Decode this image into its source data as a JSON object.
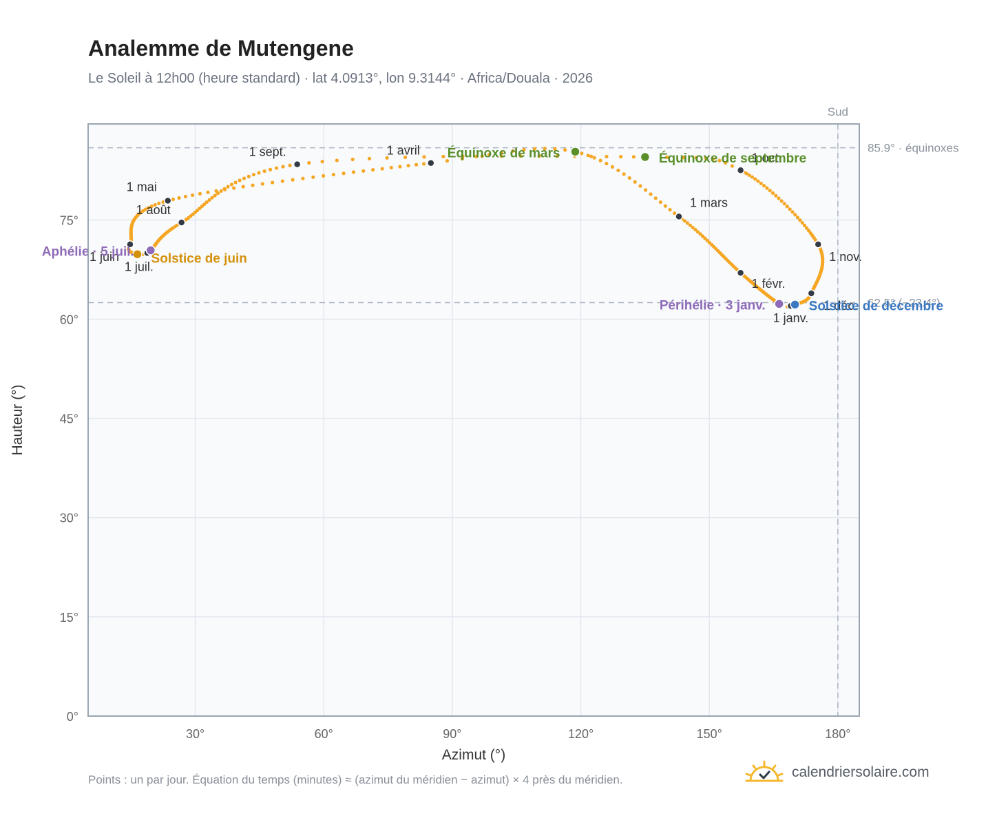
{
  "title": "Analemme de Mutengene",
  "subtitle": "Le Soleil à 12h00 (heure standard) · lat 4.0913°, lon 9.3144° · Africa/Douala · 2026",
  "footnote": "Points : un par jour. Équation du temps (minutes) ≈ (azimut du méridien − azimut) × 4 près du méridien.",
  "brand": "calendriersolaire.com",
  "colors": {
    "curve": "#f5a623",
    "month_marker": "#333a44",
    "equinox": "#5a8f2a",
    "june_solstice": "#d4900a",
    "december_solstice": "#3a78c2",
    "apsis": "#8e6bb8",
    "reference_line": "#aab4c0",
    "plot_bg": "#f8fafc",
    "grid": "#e3e8ee"
  },
  "chart_data": {
    "type": "scatter",
    "xlabel": "Azimut (°)",
    "ylabel": "Hauteur (°)",
    "xlim": [
      5,
      185
    ],
    "ylim": [
      0,
      89.5
    ],
    "x_ticks": [
      30,
      60,
      90,
      120,
      150,
      180
    ],
    "x_tick_labels": [
      "30°",
      "60°",
      "90°",
      "120°",
      "150°",
      "180°"
    ],
    "y_ticks": [
      0,
      15,
      30,
      45,
      60,
      75
    ],
    "y_tick_labels": [
      "0°",
      "15°",
      "30°",
      "45°",
      "60°",
      "75°"
    ],
    "grid": true,
    "reference_lines": [
      {
        "axis": "y",
        "value": 85.9,
        "label": "85.9° · équinoxes"
      },
      {
        "axis": "y",
        "value": 62.5,
        "label": "62.5° (−23.4°)"
      },
      {
        "axis": "x",
        "value": 180,
        "label": "Sud"
      }
    ],
    "series": [
      {
        "kind": "daily_path",
        "anchors": [
          {
            "doy": 1,
            "az": 169.0,
            "alt": 62.0
          },
          {
            "doy": 3,
            "az": 166.3,
            "alt": 62.3
          },
          {
            "doy": 32,
            "az": 157.3,
            "alt": 67.0
          },
          {
            "doy": 60,
            "az": 142.9,
            "alt": 75.5
          },
          {
            "doy": 79,
            "az": 118.7,
            "alt": 85.3
          },
          {
            "doy": 91,
            "az": 85.0,
            "alt": 83.6
          },
          {
            "doy": 121,
            "az": 23.6,
            "alt": 77.9
          },
          {
            "doy": 152,
            "az": 14.8,
            "alt": 71.3
          },
          {
            "doy": 172,
            "az": 16.5,
            "alt": 69.8
          },
          {
            "doy": 182,
            "az": 18.8,
            "alt": 70.0
          },
          {
            "doy": 186,
            "az": 19.6,
            "alt": 70.4
          },
          {
            "doy": 213,
            "az": 26.8,
            "alt": 74.6
          },
          {
            "doy": 244,
            "az": 53.8,
            "alt": 83.4
          },
          {
            "doy": 265,
            "az": 135.0,
            "alt": 84.5
          },
          {
            "doy": 274,
            "az": 157.3,
            "alt": 82.5
          },
          {
            "doy": 305,
            "az": 175.4,
            "alt": 71.3
          },
          {
            "doy": 335,
            "az": 173.8,
            "alt": 63.9
          },
          {
            "doy": 355,
            "az": 170.0,
            "alt": 62.2
          },
          {
            "doy": 365,
            "az": 169.0,
            "alt": 62.0
          }
        ]
      }
    ],
    "month_markers": [
      {
        "label": "1 janv.",
        "az": 169.0,
        "alt": 62.0
      },
      {
        "label": "1 févr.",
        "az": 157.3,
        "alt": 67.0
      },
      {
        "label": "1 mars",
        "az": 142.9,
        "alt": 75.5
      },
      {
        "label": "1 avril",
        "az": 85.0,
        "alt": 83.6
      },
      {
        "label": "1 mai",
        "az": 23.6,
        "alt": 77.9
      },
      {
        "label": "1 juin",
        "az": 14.8,
        "alt": 71.3
      },
      {
        "label": "1 juil.",
        "az": 18.8,
        "alt": 70.0
      },
      {
        "label": "1 août",
        "az": 26.8,
        "alt": 74.6
      },
      {
        "label": "1 sept.",
        "az": 53.8,
        "alt": 83.4
      },
      {
        "label": "1 oct.",
        "az": 157.3,
        "alt": 82.5
      },
      {
        "label": "1 nov.",
        "az": 175.4,
        "alt": 71.3
      },
      {
        "label": "1 déc.",
        "az": 173.8,
        "alt": 63.9
      }
    ],
    "events": [
      {
        "label": "Équinoxe de mars",
        "az": 118.7,
        "alt": 85.3,
        "color_key": "equinox"
      },
      {
        "label": "Équinoxe de septembre",
        "az": 135.0,
        "alt": 84.5,
        "color_key": "equinox"
      },
      {
        "label": "Solstice de juin",
        "az": 16.5,
        "alt": 69.8,
        "color_key": "june_solstice"
      },
      {
        "label": "Solstice de décembre",
        "az": 170.0,
        "alt": 62.2,
        "color_key": "december_solstice"
      },
      {
        "label": "Aphélie · 5 juil.",
        "az": 19.6,
        "alt": 70.4,
        "color_key": "apsis"
      },
      {
        "label": "Périhélie · 3 janv.",
        "az": 166.3,
        "alt": 62.3,
        "color_key": "apsis"
      }
    ]
  }
}
